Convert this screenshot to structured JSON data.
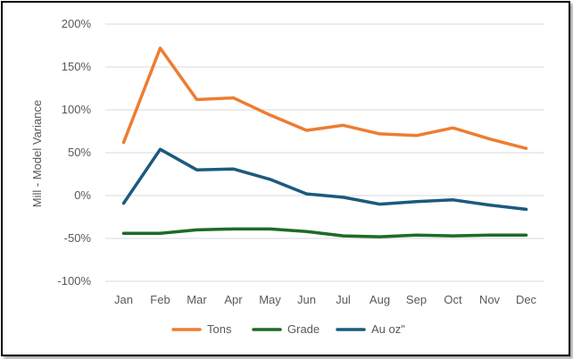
{
  "chart_data": {
    "type": "line",
    "title": "",
    "xlabel": "",
    "ylabel": "Mill - Model Variance",
    "categories": [
      "Jan",
      "Feb",
      "Mar",
      "Apr",
      "May",
      "Jun",
      "Jul",
      "Aug",
      "Sep",
      "Oct",
      "Nov",
      "Dec"
    ],
    "ylim": [
      -100,
      200
    ],
    "yticks": [
      200,
      150,
      100,
      50,
      0,
      -50,
      -100
    ],
    "ytick_labels": [
      "200%",
      "150%",
      "100%",
      "50%",
      "0%",
      "-50%",
      "-100%"
    ],
    "grid": true,
    "legend_position": "bottom",
    "series": [
      {
        "name": "Tons",
        "color": "#ED7D31",
        "values": [
          62,
          172,
          112,
          114,
          94,
          76,
          82,
          72,
          70,
          79,
          66,
          55
        ]
      },
      {
        "name": "Grade",
        "color": "#1E6B24",
        "values": [
          -44,
          -44,
          -40,
          -39,
          -39,
          -42,
          -47,
          -48,
          -46,
          -47,
          -46,
          -46
        ]
      },
      {
        "name": "Au oz\"",
        "color": "#1B5A7E",
        "values": [
          -9,
          54,
          30,
          31,
          19,
          2,
          -2,
          -10,
          -7,
          -5,
          -11,
          -16
        ]
      }
    ]
  }
}
